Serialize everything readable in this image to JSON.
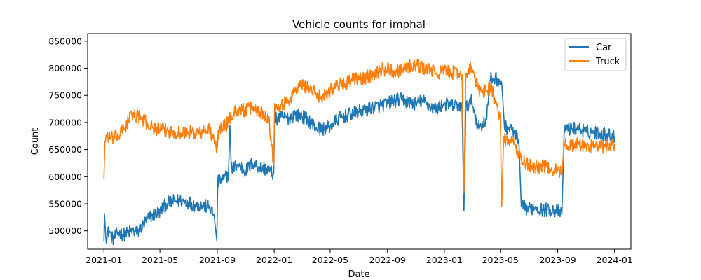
{
  "chart_data": {
    "type": "line",
    "title": "Vehicle counts for imphal",
    "xlabel": "Date",
    "ylabel": "Count",
    "xlim": [
      "2020-11-27",
      "2024-02-05"
    ],
    "ylim": [
      466000,
      864000
    ],
    "x_ticks": [
      "2021-01",
      "2021-05",
      "2021-09",
      "2022-01",
      "2022-05",
      "2022-09",
      "2023-01",
      "2023-05",
      "2023-09",
      "2024-01"
    ],
    "y_ticks": [
      500000,
      550000,
      600000,
      650000,
      700000,
      750000,
      800000,
      850000
    ],
    "y_tick_labels": [
      "500000",
      "550000",
      "600000",
      "650000",
      "700000",
      "750000",
      "800000",
      "850000"
    ],
    "grid": false,
    "legend_position": "upper right",
    "series": [
      {
        "name": "Car",
        "color": "#1f77b4",
        "points": [
          [
            "2021-01-01",
            480000
          ],
          [
            "2021-01-02",
            532000
          ],
          [
            "2021-01-05",
            488000
          ],
          [
            "2021-01-12",
            500000
          ],
          [
            "2021-01-20",
            484000
          ],
          [
            "2021-02-01",
            497000
          ],
          [
            "2021-02-15",
            493000
          ],
          [
            "2021-03-01",
            500000
          ],
          [
            "2021-03-15",
            497000
          ],
          [
            "2021-04-01",
            518000
          ],
          [
            "2021-04-15",
            530000
          ],
          [
            "2021-05-01",
            535000
          ],
          [
            "2021-05-15",
            550000
          ],
          [
            "2021-06-01",
            555000
          ],
          [
            "2021-06-15",
            556000
          ],
          [
            "2021-07-01",
            553000
          ],
          [
            "2021-07-15",
            548000
          ],
          [
            "2021-08-01",
            546000
          ],
          [
            "2021-08-15",
            544000
          ],
          [
            "2021-08-25",
            530000
          ],
          [
            "2021-08-31",
            482000
          ],
          [
            "2021-09-02",
            590000
          ],
          [
            "2021-09-15",
            595000
          ],
          [
            "2021-09-25",
            605000
          ],
          [
            "2021-09-28",
            695000
          ],
          [
            "2021-10-01",
            615000
          ],
          [
            "2021-10-15",
            622000
          ],
          [
            "2021-11-01",
            610000
          ],
          [
            "2021-11-15",
            625000
          ],
          [
            "2021-12-01",
            618000
          ],
          [
            "2021-12-20",
            612000
          ],
          [
            "2021-12-31",
            605000
          ],
          [
            "2022-01-02",
            705000
          ],
          [
            "2022-01-15",
            710000
          ],
          [
            "2022-02-01",
            708000
          ],
          [
            "2022-02-15",
            715000
          ],
          [
            "2022-03-01",
            712000
          ],
          [
            "2022-03-15",
            705000
          ],
          [
            "2022-04-01",
            690000
          ],
          [
            "2022-04-15",
            688000
          ],
          [
            "2022-05-01",
            692000
          ],
          [
            "2022-05-15",
            705000
          ],
          [
            "2022-06-01",
            712000
          ],
          [
            "2022-06-15",
            715000
          ],
          [
            "2022-07-01",
            720000
          ],
          [
            "2022-07-15",
            722000
          ],
          [
            "2022-08-01",
            728000
          ],
          [
            "2022-08-15",
            730000
          ],
          [
            "2022-09-01",
            735000
          ],
          [
            "2022-09-15",
            740000
          ],
          [
            "2022-10-01",
            742000
          ],
          [
            "2022-10-15",
            738000
          ],
          [
            "2022-11-01",
            735000
          ],
          [
            "2022-11-15",
            740000
          ],
          [
            "2022-12-01",
            730000
          ],
          [
            "2022-12-15",
            725000
          ],
          [
            "2023-01-01",
            735000
          ],
          [
            "2023-01-15",
            730000
          ],
          [
            "2023-02-01",
            733000
          ],
          [
            "2023-02-08",
            725000
          ],
          [
            "2023-02-12",
            537000
          ],
          [
            "2023-02-16",
            728000
          ],
          [
            "2023-03-01",
            740000
          ],
          [
            "2023-03-15",
            690000
          ],
          [
            "2023-04-01",
            705000
          ],
          [
            "2023-04-10",
            780000
          ],
          [
            "2023-04-20",
            782000
          ],
          [
            "2023-05-01",
            775000
          ],
          [
            "2023-05-05",
            760000
          ],
          [
            "2023-05-10",
            690000
          ],
          [
            "2023-05-20",
            690000
          ],
          [
            "2023-06-01",
            680000
          ],
          [
            "2023-06-10",
            660000
          ],
          [
            "2023-06-15",
            545000
          ],
          [
            "2023-07-01",
            540000
          ],
          [
            "2023-07-15",
            545000
          ],
          [
            "2023-08-01",
            538000
          ],
          [
            "2023-08-15",
            540000
          ],
          [
            "2023-09-01",
            537000
          ],
          [
            "2023-09-10",
            530000
          ],
          [
            "2023-09-15",
            690000
          ],
          [
            "2023-10-01",
            688000
          ],
          [
            "2023-10-15",
            690000
          ],
          [
            "2023-11-01",
            682000
          ],
          [
            "2023-11-15",
            683000
          ],
          [
            "2023-12-01",
            680000
          ],
          [
            "2023-12-15",
            678000
          ],
          [
            "2024-01-01",
            675000
          ]
        ]
      },
      {
        "name": "Truck",
        "color": "#ff7f0e",
        "points": [
          [
            "2021-01-01",
            595000
          ],
          [
            "2021-01-03",
            665000
          ],
          [
            "2021-01-06",
            678000
          ],
          [
            "2021-01-15",
            670000
          ],
          [
            "2021-02-01",
            675000
          ],
          [
            "2021-02-15",
            690000
          ],
          [
            "2021-03-01",
            715000
          ],
          [
            "2021-03-15",
            712000
          ],
          [
            "2021-04-01",
            700000
          ],
          [
            "2021-04-15",
            690000
          ],
          [
            "2021-05-01",
            688000
          ],
          [
            "2021-05-15",
            685000
          ],
          [
            "2021-06-01",
            683000
          ],
          [
            "2021-06-15",
            680000
          ],
          [
            "2021-07-01",
            682000
          ],
          [
            "2021-07-15",
            680000
          ],
          [
            "2021-08-01",
            681000
          ],
          [
            "2021-08-15",
            688000
          ],
          [
            "2021-08-31",
            650000
          ],
          [
            "2021-09-05",
            690000
          ],
          [
            "2021-09-20",
            695000
          ],
          [
            "2021-10-01",
            712000
          ],
          [
            "2021-10-15",
            725000
          ],
          [
            "2021-11-01",
            722000
          ],
          [
            "2021-11-15",
            728000
          ],
          [
            "2021-12-01",
            720000
          ],
          [
            "2021-12-20",
            710000
          ],
          [
            "2021-12-31",
            620000
          ],
          [
            "2022-01-02",
            735000
          ],
          [
            "2022-01-15",
            732000
          ],
          [
            "2022-02-01",
            740000
          ],
          [
            "2022-02-15",
            760000
          ],
          [
            "2022-03-01",
            770000
          ],
          [
            "2022-03-15",
            765000
          ],
          [
            "2022-04-01",
            752000
          ],
          [
            "2022-04-15",
            748000
          ],
          [
            "2022-05-01",
            760000
          ],
          [
            "2022-05-15",
            768000
          ],
          [
            "2022-06-01",
            772000
          ],
          [
            "2022-06-15",
            778000
          ],
          [
            "2022-07-01",
            780000
          ],
          [
            "2022-07-15",
            782000
          ],
          [
            "2022-08-01",
            790000
          ],
          [
            "2022-08-15",
            795000
          ],
          [
            "2022-09-01",
            800000
          ],
          [
            "2022-09-15",
            795000
          ],
          [
            "2022-10-01",
            798000
          ],
          [
            "2022-10-15",
            802000
          ],
          [
            "2022-11-01",
            805000
          ],
          [
            "2022-11-15",
            800000
          ],
          [
            "2022-12-01",
            798000
          ],
          [
            "2022-12-15",
            790000
          ],
          [
            "2023-01-01",
            795000
          ],
          [
            "2023-01-15",
            792000
          ],
          [
            "2023-02-01",
            790000
          ],
          [
            "2023-02-08",
            788000
          ],
          [
            "2023-02-12",
            570000
          ],
          [
            "2023-02-16",
            790000
          ],
          [
            "2023-03-01",
            800000
          ],
          [
            "2023-03-15",
            760000
          ],
          [
            "2023-04-01",
            758000
          ],
          [
            "2023-04-10",
            770000
          ],
          [
            "2023-04-20",
            740000
          ],
          [
            "2023-05-01",
            700000
          ],
          [
            "2023-05-04",
            545000
          ],
          [
            "2023-05-08",
            670000
          ],
          [
            "2023-05-20",
            665000
          ],
          [
            "2023-06-01",
            660000
          ],
          [
            "2023-06-15",
            630000
          ],
          [
            "2023-07-01",
            620000
          ],
          [
            "2023-07-15",
            618000
          ],
          [
            "2023-08-01",
            620000
          ],
          [
            "2023-08-15",
            615000
          ],
          [
            "2023-09-01",
            612000
          ],
          [
            "2023-09-10",
            605000
          ],
          [
            "2023-09-15",
            660000
          ],
          [
            "2023-10-01",
            658000
          ],
          [
            "2023-10-15",
            660000
          ],
          [
            "2023-11-01",
            655000
          ],
          [
            "2023-11-15",
            658000
          ],
          [
            "2023-12-01",
            655000
          ],
          [
            "2023-12-15",
            656000
          ],
          [
            "2024-01-01",
            660000
          ]
        ]
      }
    ]
  }
}
